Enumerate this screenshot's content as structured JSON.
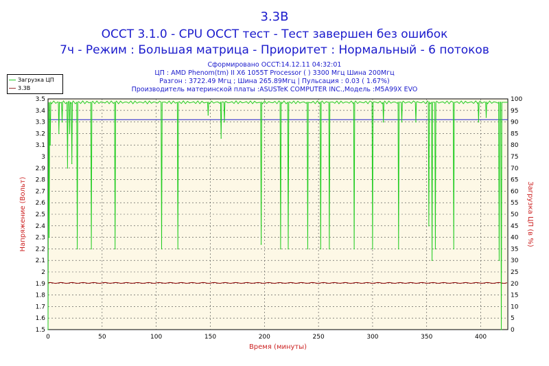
{
  "chart_data": {
    "type": "line",
    "title_lines": [
      "3.3B",
      "OCCT 3.1.0 - CPU OCCT тест - Тест завершен без ошибок",
      "7ч - Режим : Большая матрица - Приоритет : Нормальный - 6 потоков"
    ],
    "info_lines": [
      "Сформировано OCCT:14.12.11 04:32:01",
      "ЦП : AMD Phenom(tm) II X6 1055T Processor (  ) 3300 Мгц Шина 200Мгц",
      "Разгон : 3722.49 Мгц ; Шина 265.89Мгц | Пульсация : 0.03 ( 1.67%)",
      "Производитель материнской платы :ASUSTeK COMPUTER INC.,Модель :M5A99X EVO"
    ],
    "xlabel": "Время (минуты)",
    "ylabel_left": "Напряжение (Вольт)",
    "ylabel_right": "Загрузка ЦП (в %)",
    "xlim": [
      0,
      425
    ],
    "ylim_left": [
      1.5,
      3.5
    ],
    "ylim_right": [
      0,
      100
    ],
    "xticks": [
      0,
      50,
      100,
      150,
      200,
      250,
      300,
      350,
      400
    ],
    "yticks_left": [
      "1.5",
      "1.6",
      "1.7",
      "1.8",
      "1.9",
      "2",
      "2.1",
      "2.2",
      "2.3",
      "2.4",
      "2.5",
      "2.6",
      "2.7",
      "2.8",
      "2.9",
      "3",
      "3.1",
      "3.2",
      "3.3",
      "3.4",
      "3.5"
    ],
    "yticks_right": [
      "0",
      "5",
      "10",
      "15",
      "20",
      "25",
      "30",
      "35",
      "40",
      "45",
      "50",
      "55",
      "60",
      "65",
      "70",
      "75",
      "80",
      "85",
      "90",
      "95",
      "100"
    ],
    "grid": true,
    "legend_position": "top-left",
    "series": [
      {
        "name": "Загрузка ЦП",
        "axis": "right",
        "color": "#22cc22",
        "baseline": 98.5,
        "x": [
          0,
          1,
          2,
          10,
          13,
          18,
          20,
          22,
          27,
          40,
          62,
          105,
          120,
          148,
          160,
          163,
          197,
          215,
          222,
          240,
          252,
          260,
          283,
          300,
          310,
          324,
          327,
          340,
          352,
          355,
          358,
          375,
          398,
          405,
          417,
          419
        ],
        "dips": [
          0,
          40,
          80,
          85,
          90,
          70,
          85,
          72,
          35,
          35,
          35,
          35,
          35,
          93,
          83,
          90,
          37,
          35,
          35,
          35,
          35,
          35,
          35,
          35,
          90,
          35,
          90,
          90,
          45,
          30,
          35,
          35,
          90,
          92,
          30,
          0
        ]
      },
      {
        "name": "3.3B",
        "axis": "left",
        "color": "#993333",
        "values": [
          3.32
        ]
      }
    ],
    "extra_line": {
      "axis": "left",
      "value": 1.905,
      "color": "#8b0000"
    }
  }
}
